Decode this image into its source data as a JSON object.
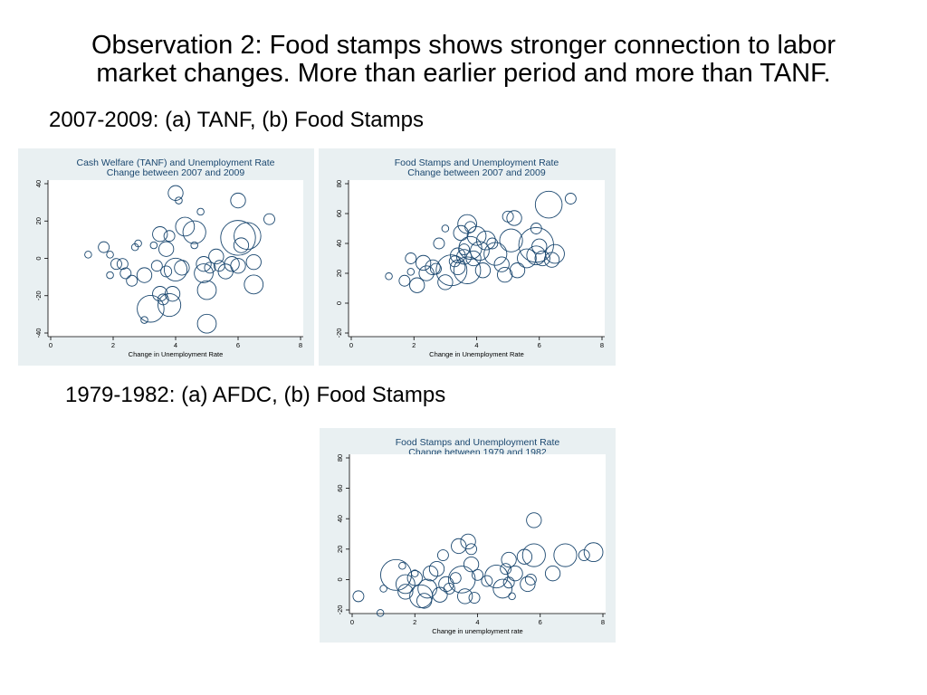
{
  "headline": {
    "line1": "Observation 2: Food stamps shows stronger connection to labor",
    "line2": "market changes. More than earlier period and more than TANF."
  },
  "subtitles": {
    "period1": "2007-2009: (a) TANF, (b) Food Stamps",
    "period2": "1979-1982: (a) AFDC, (b) Food Stamps"
  },
  "colors": {
    "panel_bg": "#e9f0f2",
    "plot_bg": "#ffffff",
    "marker": "#1a476f",
    "title": "#1a476f"
  },
  "chart_data": [
    {
      "type": "scatter",
      "title": "Cash Welfare (TANF) and Unemployment Rate",
      "subtitle": "Change between 2007 and 2009",
      "xlabel": "Change in Unemployment Rate",
      "ylabel": "",
      "xlim": [
        0,
        8
      ],
      "ylim": [
        -40,
        40
      ],
      "xticks": [
        "0",
        "2",
        "4",
        "6",
        "8"
      ],
      "yticks": [
        "-40",
        "-20",
        "0",
        "20",
        "40"
      ],
      "grid": false,
      "points": [
        {
          "x": 1.2,
          "y": 2,
          "s": 1
        },
        {
          "x": 1.7,
          "y": 6,
          "s": 2
        },
        {
          "x": 1.9,
          "y": 2,
          "s": 1
        },
        {
          "x": 2.1,
          "y": -3,
          "s": 2
        },
        {
          "x": 1.9,
          "y": -9,
          "s": 1
        },
        {
          "x": 2.3,
          "y": -3,
          "s": 2
        },
        {
          "x": 2.4,
          "y": -8,
          "s": 2
        },
        {
          "x": 2.6,
          "y": -12,
          "s": 2
        },
        {
          "x": 2.7,
          "y": 6,
          "s": 1
        },
        {
          "x": 2.8,
          "y": 8,
          "s": 1
        },
        {
          "x": 3.0,
          "y": -9,
          "s": 3
        },
        {
          "x": 3.0,
          "y": -33,
          "s": 1
        },
        {
          "x": 3.2,
          "y": -27,
          "s": 6
        },
        {
          "x": 3.3,
          "y": 7,
          "s": 1
        },
        {
          "x": 3.4,
          "y": -4,
          "s": 2
        },
        {
          "x": 3.5,
          "y": 13,
          "s": 3
        },
        {
          "x": 3.5,
          "y": -19,
          "s": 3
        },
        {
          "x": 3.6,
          "y": -22,
          "s": 2
        },
        {
          "x": 3.7,
          "y": 5,
          "s": 3
        },
        {
          "x": 3.7,
          "y": -7,
          "s": 2
        },
        {
          "x": 3.8,
          "y": 12,
          "s": 2
        },
        {
          "x": 3.8,
          "y": -25,
          "s": 5
        },
        {
          "x": 3.9,
          "y": -19,
          "s": 3
        },
        {
          "x": 4.0,
          "y": -6,
          "s": 5
        },
        {
          "x": 4.0,
          "y": 35,
          "s": 3
        },
        {
          "x": 4.1,
          "y": 31,
          "s": 1
        },
        {
          "x": 4.2,
          "y": -5,
          "s": 3
        },
        {
          "x": 4.3,
          "y": 17,
          "s": 4
        },
        {
          "x": 4.6,
          "y": 14,
          "s": 5
        },
        {
          "x": 4.6,
          "y": 7,
          "s": 1
        },
        {
          "x": 4.8,
          "y": 25,
          "s": 1
        },
        {
          "x": 4.9,
          "y": -3,
          "s": 3
        },
        {
          "x": 4.9,
          "y": -8,
          "s": 4
        },
        {
          "x": 5.0,
          "y": -17,
          "s": 4
        },
        {
          "x": 5.0,
          "y": -35,
          "s": 4
        },
        {
          "x": 5.1,
          "y": -5,
          "s": 2
        },
        {
          "x": 5.3,
          "y": 1,
          "s": 3
        },
        {
          "x": 5.4,
          "y": -4,
          "s": 2
        },
        {
          "x": 5.6,
          "y": -7,
          "s": 3
        },
        {
          "x": 5.8,
          "y": -3,
          "s": 3
        },
        {
          "x": 6.0,
          "y": -4,
          "s": 3
        },
        {
          "x": 6.0,
          "y": 31,
          "s": 3
        },
        {
          "x": 6.0,
          "y": 11,
          "s": 8
        },
        {
          "x": 6.1,
          "y": 7,
          "s": 3
        },
        {
          "x": 6.3,
          "y": 12,
          "s": 6
        },
        {
          "x": 6.5,
          "y": -14,
          "s": 4
        },
        {
          "x": 6.5,
          "y": -2,
          "s": 3
        },
        {
          "x": 7.0,
          "y": 21,
          "s": 2
        }
      ]
    },
    {
      "type": "scatter",
      "title": "Food Stamps and Unemployment Rate",
      "subtitle": "Change between 2007 and 2009",
      "xlabel": "Change in Unemployment Rate",
      "ylabel": "",
      "xlim": [
        0,
        8
      ],
      "ylim": [
        -20,
        80
      ],
      "xticks": [
        "0",
        "2",
        "4",
        "6",
        "8"
      ],
      "yticks": [
        "-20",
        "0",
        "20",
        "40",
        "60",
        "80"
      ],
      "grid": false,
      "points": [
        {
          "x": 1.2,
          "y": 18,
          "s": 1
        },
        {
          "x": 1.7,
          "y": 15,
          "s": 2
        },
        {
          "x": 1.9,
          "y": 21,
          "s": 1
        },
        {
          "x": 1.9,
          "y": 30,
          "s": 2
        },
        {
          "x": 2.1,
          "y": 12,
          "s": 3
        },
        {
          "x": 2.3,
          "y": 27,
          "s": 3
        },
        {
          "x": 2.4,
          "y": 20,
          "s": 3
        },
        {
          "x": 2.6,
          "y": 24,
          "s": 3
        },
        {
          "x": 2.7,
          "y": 23,
          "s": 2
        },
        {
          "x": 2.8,
          "y": 40,
          "s": 2
        },
        {
          "x": 3.0,
          "y": 50,
          "s": 1
        },
        {
          "x": 3.0,
          "y": 14,
          "s": 3
        },
        {
          "x": 3.2,
          "y": 22,
          "s": 7
        },
        {
          "x": 3.3,
          "y": 28,
          "s": 2
        },
        {
          "x": 3.4,
          "y": 32,
          "s": 3
        },
        {
          "x": 3.4,
          "y": 24,
          "s": 3
        },
        {
          "x": 3.5,
          "y": 47,
          "s": 3
        },
        {
          "x": 3.6,
          "y": 31,
          "s": 3
        },
        {
          "x": 3.6,
          "y": 36,
          "s": 2
        },
        {
          "x": 3.7,
          "y": 53,
          "s": 4
        },
        {
          "x": 3.7,
          "y": 22,
          "s": 6
        },
        {
          "x": 3.8,
          "y": 37,
          "s": 5
        },
        {
          "x": 3.8,
          "y": 51,
          "s": 2
        },
        {
          "x": 3.9,
          "y": 30,
          "s": 3
        },
        {
          "x": 4.0,
          "y": 45,
          "s": 4
        },
        {
          "x": 4.1,
          "y": 35,
          "s": 4
        },
        {
          "x": 4.2,
          "y": 22,
          "s": 3
        },
        {
          "x": 4.3,
          "y": 42,
          "s": 4
        },
        {
          "x": 4.5,
          "y": 40,
          "s": 2
        },
        {
          "x": 4.6,
          "y": 33,
          "s": 5
        },
        {
          "x": 4.8,
          "y": 26,
          "s": 3
        },
        {
          "x": 4.9,
          "y": 19,
          "s": 3
        },
        {
          "x": 5.0,
          "y": 58,
          "s": 2
        },
        {
          "x": 5.1,
          "y": 42,
          "s": 5
        },
        {
          "x": 5.2,
          "y": 57,
          "s": 3
        },
        {
          "x": 5.3,
          "y": 22,
          "s": 3
        },
        {
          "x": 5.6,
          "y": 30,
          "s": 4
        },
        {
          "x": 5.9,
          "y": 32,
          "s": 4
        },
        {
          "x": 5.9,
          "y": 50,
          "s": 2
        },
        {
          "x": 5.9,
          "y": 39,
          "s": 8
        },
        {
          "x": 6.0,
          "y": 38,
          "s": 3
        },
        {
          "x": 6.1,
          "y": 30,
          "s": 3
        },
        {
          "x": 6.3,
          "y": 66,
          "s": 6
        },
        {
          "x": 6.4,
          "y": 29,
          "s": 3
        },
        {
          "x": 6.5,
          "y": 33,
          "s": 4
        },
        {
          "x": 7.0,
          "y": 70,
          "s": 2
        }
      ]
    },
    {
      "type": "scatter",
      "title": "Food Stamps and Unemployment Rate",
      "subtitle": "Change between 1979 and 1982",
      "xlabel": "Change in unemployment rate",
      "ylabel": "",
      "xlim": [
        0,
        8
      ],
      "ylim": [
        -20,
        80
      ],
      "xticks": [
        "0",
        "2",
        "4",
        "6",
        "8"
      ],
      "yticks": [
        "-20",
        "0",
        "20",
        "40",
        "60",
        "80"
      ],
      "grid": false,
      "points": [
        {
          "x": 0.2,
          "y": -11,
          "s": 2
        },
        {
          "x": 0.9,
          "y": -22,
          "s": 1
        },
        {
          "x": 1.0,
          "y": -6,
          "s": 1
        },
        {
          "x": 1.4,
          "y": 3,
          "s": 7
        },
        {
          "x": 1.6,
          "y": 9,
          "s": 1
        },
        {
          "x": 1.7,
          "y": -3,
          "s": 4
        },
        {
          "x": 1.7,
          "y": -8,
          "s": 3
        },
        {
          "x": 2.0,
          "y": 4,
          "s": 1
        },
        {
          "x": 2.0,
          "y": 1,
          "s": 3
        },
        {
          "x": 2.2,
          "y": -11,
          "s": 5
        },
        {
          "x": 2.3,
          "y": -14,
          "s": 3
        },
        {
          "x": 2.4,
          "y": -6,
          "s": 4
        },
        {
          "x": 2.5,
          "y": 4,
          "s": 3
        },
        {
          "x": 2.7,
          "y": 7,
          "s": 3
        },
        {
          "x": 2.8,
          "y": -10,
          "s": 3
        },
        {
          "x": 2.9,
          "y": 16,
          "s": 2
        },
        {
          "x": 3.0,
          "y": -3,
          "s": 3
        },
        {
          "x": 3.1,
          "y": -6,
          "s": 2
        },
        {
          "x": 3.3,
          "y": 1,
          "s": 2
        },
        {
          "x": 3.4,
          "y": 22,
          "s": 3
        },
        {
          "x": 3.5,
          "y": 0,
          "s": 6
        },
        {
          "x": 3.6,
          "y": -11,
          "s": 3
        },
        {
          "x": 3.7,
          "y": 25,
          "s": 3
        },
        {
          "x": 3.8,
          "y": 20,
          "s": 2
        },
        {
          "x": 3.8,
          "y": 10,
          "s": 3
        },
        {
          "x": 3.9,
          "y": -12,
          "s": 2
        },
        {
          "x": 4.0,
          "y": 3,
          "s": 2
        },
        {
          "x": 4.3,
          "y": -1,
          "s": 2
        },
        {
          "x": 4.6,
          "y": 2,
          "s": 5
        },
        {
          "x": 4.8,
          "y": -6,
          "s": 4
        },
        {
          "x": 4.9,
          "y": 7,
          "s": 2
        },
        {
          "x": 5.0,
          "y": 13,
          "s": 3
        },
        {
          "x": 5.0,
          "y": -2,
          "s": 2
        },
        {
          "x": 5.1,
          "y": -11,
          "s": 1
        },
        {
          "x": 5.2,
          "y": 4,
          "s": 3
        },
        {
          "x": 5.5,
          "y": 15,
          "s": 3
        },
        {
          "x": 5.6,
          "y": -3,
          "s": 3
        },
        {
          "x": 5.7,
          "y": 0,
          "s": 2
        },
        {
          "x": 5.8,
          "y": 16,
          "s": 5
        },
        {
          "x": 5.8,
          "y": 39,
          "s": 3
        },
        {
          "x": 6.4,
          "y": 4,
          "s": 3
        },
        {
          "x": 6.8,
          "y": 16,
          "s": 5
        },
        {
          "x": 7.4,
          "y": 16,
          "s": 2
        },
        {
          "x": 7.7,
          "y": 18,
          "s": 4
        }
      ]
    }
  ]
}
